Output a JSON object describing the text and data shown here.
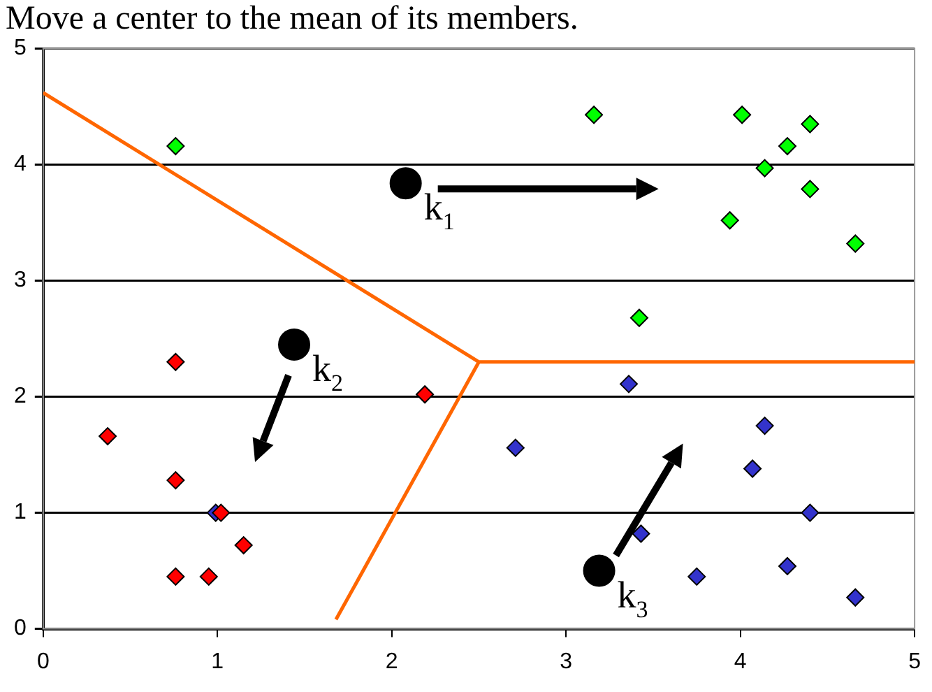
{
  "chart_data": {
    "type": "scatter",
    "title": "Move a center to the mean of its members.",
    "xlim": [
      0,
      5
    ],
    "xticks": [
      0,
      1,
      2,
      3,
      4,
      5
    ],
    "ylim": [
      0,
      5
    ],
    "yticks": [
      0,
      1,
      2,
      3,
      4,
      5
    ],
    "grid": "y",
    "legend": false,
    "marker": "diamond",
    "series": [
      {
        "type": "line",
        "color": "#ff6600",
        "marker": "none",
        "x": [
          0,
          2.5,
          5
        ],
        "values": [
          4.62,
          2.3,
          2.3
        ]
      },
      {
        "type": "line",
        "color": "#ff6600",
        "marker": "none",
        "x": [
          2.5,
          1.68
        ],
        "values": [
          2.3,
          0.08
        ]
      },
      {
        "color": "#00ff00",
        "x": [
          0.76,
          3.16,
          4.01,
          4.4,
          4.27,
          4.14,
          4.4,
          3.94,
          4.66,
          3.42
        ],
        "values": [
          4.16,
          4.43,
          4.43,
          4.35,
          4.16,
          3.97,
          3.79,
          3.52,
          3.32,
          2.68
        ]
      },
      {
        "color": "#3333cc",
        "x": [
          0.99,
          3.36,
          2.71,
          4.14,
          4.07,
          4.4,
          3.43,
          3.75,
          4.27,
          4.66
        ],
        "values": [
          1.0,
          2.11,
          1.56,
          1.75,
          1.38,
          1.0,
          0.82,
          0.45,
          0.54,
          0.27
        ]
      },
      {
        "color": "#ff0000",
        "x": [
          0.76,
          0.37,
          0.76,
          1.02,
          1.15,
          0.76,
          0.95,
          2.19
        ],
        "values": [
          2.3,
          1.66,
          1.28,
          1.0,
          0.72,
          0.45,
          0.45,
          2.02
        ]
      },
      {
        "color": "#000000",
        "marker": "circle",
        "x": [
          2.08,
          1.44,
          3.19
        ],
        "values": [
          3.84,
          2.45,
          0.5
        ]
      }
    ],
    "annotations": [
      {
        "text": "k$_{1}$",
        "x": 2.08,
        "y": 3.84
      },
      {
        "text": "k$_{2}$",
        "x": 1.44,
        "y": 2.45
      },
      {
        "text": "k$_{3}$",
        "x": 3.19,
        "y": 0.5
      }
    ]
  }
}
